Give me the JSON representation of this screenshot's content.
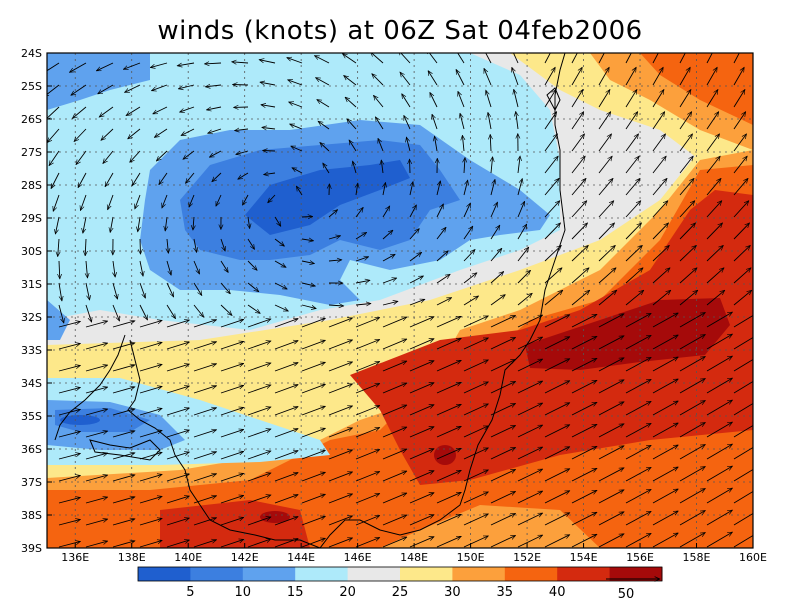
{
  "title": "winds (knots) at 06Z Sat 04feb2006",
  "lat_labels": [
    "24S",
    "25S",
    "26S",
    "27S",
    "28S",
    "29S",
    "30S",
    "31S",
    "32S",
    "33S",
    "34S",
    "35S",
    "36S",
    "37S",
    "38S",
    "39S"
  ],
  "lon_labels": [
    "136E",
    "138E",
    "140E",
    "142E",
    "144E",
    "146E",
    "148E",
    "150E",
    "152E",
    "154E",
    "156E",
    "158E",
    "160E"
  ],
  "colorbar": {
    "labels": [
      "5",
      "10",
      "15",
      "20",
      "25",
      "30",
      "35",
      "40"
    ],
    "colors": [
      "#1f5fcf",
      "#3c7fe0",
      "#5fa2ee",
      "#aeeafa",
      "#e8e8e8",
      "#fde88a",
      "#fca03c",
      "#f56410",
      "#d42a0f",
      "#a50a0a"
    ],
    "vector_reference": "50"
  },
  "colors": {
    "c5": "#1f5fcf",
    "c10": "#3c7fe0",
    "c15": "#5fa2ee",
    "c20": "#aeeafa",
    "c25": "#e8e8e8",
    "c30": "#fde88a",
    "c35": "#fca03c",
    "c40": "#f56410",
    "c45": "#d42a0f",
    "c50": "#a50a0a"
  }
}
